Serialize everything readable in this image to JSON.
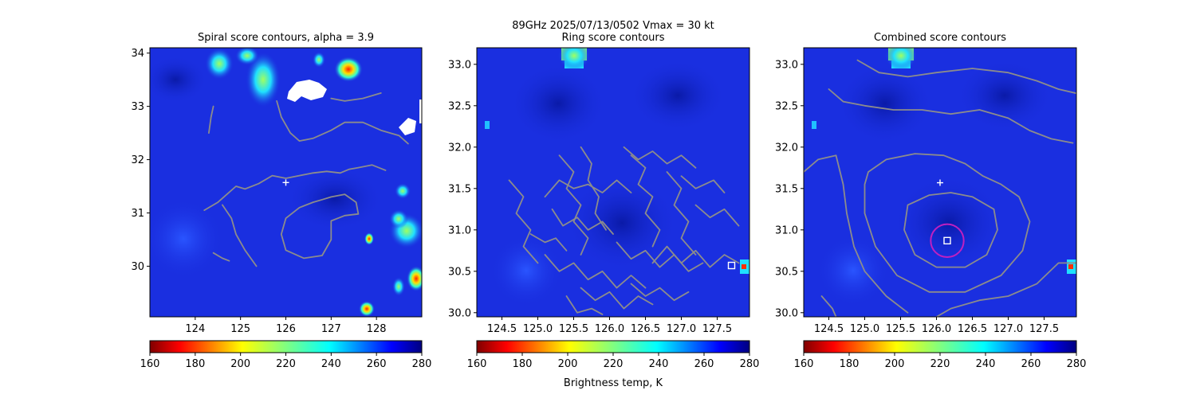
{
  "figure": {
    "suptitle_line1": "89GHz  2025/07/13/0502    Vmax = 30 kt",
    "colorbar_label": "Brightness temp, K"
  },
  "colors": {
    "contour": "#8c8c8c",
    "marker": "#ffffff",
    "circle": "#c020c0",
    "background_field": "#1a2fe0"
  },
  "chart_data": [
    {
      "type": "heatmap",
      "title": "Spiral score contours, alpha =  3.9",
      "xlim": [
        123.0,
        129.0
      ],
      "ylim": [
        29.05,
        34.1
      ],
      "xticks": [
        "124",
        "125",
        "126",
        "127",
        "128"
      ],
      "xtick_values": [
        124,
        125,
        126,
        127,
        128
      ],
      "yticks": [
        "30",
        "31",
        "32",
        "33",
        "34"
      ],
      "ytick_values": [
        30,
        31,
        32,
        33,
        34
      ],
      "colorbar": {
        "min": 160,
        "max": 280,
        "ticks": [
          "160",
          "180",
          "200",
          "220",
          "240",
          "260",
          "280"
        ],
        "cmap": "jet_r"
      },
      "markers": [
        {
          "kind": "plus",
          "lon": 126.0,
          "lat": 31.57
        }
      ],
      "contours": [
        [
          [
            124.2,
            31.05
          ],
          [
            124.5,
            31.2
          ],
          [
            124.7,
            31.35
          ],
          [
            124.9,
            31.5
          ],
          [
            125.1,
            31.45
          ],
          [
            125.4,
            31.55
          ],
          [
            125.7,
            31.7
          ],
          [
            126.0,
            31.65
          ],
          [
            126.3,
            31.7
          ],
          [
            126.6,
            31.75
          ],
          [
            126.9,
            31.78
          ],
          [
            127.2,
            31.75
          ],
          [
            127.4,
            31.82
          ],
          [
            127.6,
            31.85
          ],
          [
            127.9,
            31.9
          ],
          [
            128.2,
            31.8
          ]
        ],
        [
          [
            124.6,
            31.15
          ],
          [
            124.8,
            30.9
          ],
          [
            124.9,
            30.6
          ],
          [
            125.1,
            30.3
          ],
          [
            125.35,
            30.0
          ]
        ],
        [
          [
            126.6,
            31.2
          ],
          [
            126.3,
            31.1
          ],
          [
            126.0,
            30.9
          ],
          [
            125.9,
            30.6
          ],
          [
            126.0,
            30.3
          ],
          [
            126.4,
            30.15
          ],
          [
            126.8,
            30.2
          ],
          [
            127.0,
            30.5
          ],
          [
            127.0,
            30.85
          ],
          [
            127.3,
            30.95
          ],
          [
            127.6,
            30.98
          ],
          [
            127.55,
            31.2
          ],
          [
            127.3,
            31.35
          ],
          [
            127.0,
            31.3
          ],
          [
            126.8,
            31.25
          ],
          [
            126.6,
            31.2
          ]
        ],
        [
          [
            124.4,
            30.25
          ],
          [
            124.6,
            30.15
          ],
          [
            124.75,
            30.1
          ]
        ],
        [
          [
            124.3,
            32.5
          ],
          [
            124.35,
            32.8
          ],
          [
            124.4,
            33.0
          ]
        ],
        [
          [
            125.8,
            33.1
          ],
          [
            125.9,
            32.8
          ],
          [
            126.1,
            32.5
          ],
          [
            126.3,
            32.35
          ],
          [
            126.6,
            32.4
          ],
          [
            127.0,
            32.55
          ],
          [
            127.3,
            32.7
          ],
          [
            127.7,
            32.7
          ],
          [
            128.1,
            32.55
          ],
          [
            128.5,
            32.45
          ],
          [
            128.7,
            32.3
          ]
        ],
        [
          [
            127.0,
            33.15
          ],
          [
            127.3,
            33.1
          ],
          [
            127.7,
            33.15
          ],
          [
            128.1,
            33.25
          ]
        ]
      ]
    },
    {
      "type": "heatmap",
      "title": "Ring score contours",
      "xlim": [
        124.15,
        127.95
      ],
      "ylim": [
        29.95,
        33.2
      ],
      "xticks": [
        "124.5",
        "125.0",
        "125.5",
        "126.0",
        "126.5",
        "127.0",
        "127.5"
      ],
      "xtick_values": [
        124.5,
        125.0,
        125.5,
        126.0,
        126.5,
        127.0,
        127.5
      ],
      "yticks": [
        "30.0",
        "30.5",
        "31.0",
        "31.5",
        "32.0",
        "32.5",
        "33.0"
      ],
      "ytick_values": [
        30.0,
        30.5,
        31.0,
        31.5,
        32.0,
        32.5,
        33.0
      ],
      "colorbar": {
        "min": 160,
        "max": 280,
        "ticks": [
          "160",
          "180",
          "200",
          "220",
          "240",
          "260",
          "280"
        ],
        "cmap": "jet_r"
      },
      "markers": [
        {
          "kind": "square",
          "lon": 127.7,
          "lat": 30.57
        }
      ],
      "contours": [
        [
          [
            124.6,
            31.6
          ],
          [
            124.8,
            31.4
          ],
          [
            124.7,
            31.2
          ],
          [
            124.9,
            31.0
          ],
          [
            124.8,
            30.8
          ],
          [
            125.0,
            30.6
          ]
        ],
        [
          [
            125.3,
            31.9
          ],
          [
            125.5,
            31.7
          ],
          [
            125.4,
            31.5
          ],
          [
            125.6,
            31.3
          ],
          [
            125.5,
            31.1
          ],
          [
            125.7,
            30.9
          ],
          [
            125.6,
            30.7
          ]
        ],
        [
          [
            125.6,
            32.0
          ],
          [
            125.75,
            31.8
          ],
          [
            125.7,
            31.6
          ],
          [
            125.85,
            31.4
          ],
          [
            125.8,
            31.2
          ],
          [
            125.95,
            31.0
          ]
        ],
        [
          [
            125.1,
            31.4
          ],
          [
            125.3,
            31.6
          ],
          [
            125.5,
            31.5
          ],
          [
            125.7,
            31.55
          ],
          [
            125.9,
            31.45
          ],
          [
            126.1,
            31.6
          ],
          [
            126.3,
            31.45
          ]
        ],
        [
          [
            126.3,
            31.9
          ],
          [
            126.5,
            31.75
          ],
          [
            126.4,
            31.55
          ],
          [
            126.6,
            31.4
          ],
          [
            126.5,
            31.2
          ],
          [
            126.7,
            31.0
          ],
          [
            126.6,
            30.8
          ]
        ],
        [
          [
            126.8,
            31.7
          ],
          [
            127.0,
            31.5
          ],
          [
            126.9,
            31.3
          ],
          [
            127.1,
            31.1
          ],
          [
            127.0,
            30.9
          ],
          [
            127.2,
            30.7
          ]
        ],
        [
          [
            125.1,
            30.7
          ],
          [
            125.3,
            30.5
          ],
          [
            125.5,
            30.6
          ],
          [
            125.7,
            30.4
          ],
          [
            125.9,
            30.5
          ],
          [
            126.1,
            30.3
          ],
          [
            126.3,
            30.45
          ],
          [
            126.5,
            30.3
          ]
        ],
        [
          [
            125.6,
            30.3
          ],
          [
            125.8,
            30.15
          ],
          [
            126.0,
            30.25
          ],
          [
            126.2,
            30.05
          ],
          [
            126.4,
            30.2
          ],
          [
            126.6,
            30.1
          ]
        ],
        [
          [
            126.6,
            30.6
          ],
          [
            126.8,
            30.8
          ],
          [
            127.0,
            30.6
          ],
          [
            127.2,
            30.75
          ],
          [
            127.4,
            30.55
          ],
          [
            127.6,
            30.7
          ],
          [
            127.8,
            30.6
          ]
        ],
        [
          [
            127.2,
            31.3
          ],
          [
            127.4,
            31.15
          ],
          [
            127.6,
            31.25
          ],
          [
            127.8,
            31.05
          ]
        ],
        [
          [
            127.0,
            31.65
          ],
          [
            127.2,
            31.5
          ],
          [
            127.45,
            31.6
          ],
          [
            127.6,
            31.45
          ]
        ],
        [
          [
            125.2,
            31.25
          ],
          [
            125.35,
            31.05
          ],
          [
            125.55,
            31.15
          ],
          [
            125.7,
            31.0
          ],
          [
            125.9,
            31.1
          ],
          [
            126.05,
            30.95
          ]
        ],
        [
          [
            126.1,
            30.85
          ],
          [
            126.3,
            30.65
          ],
          [
            126.5,
            30.75
          ],
          [
            126.7,
            30.55
          ],
          [
            126.9,
            30.7
          ],
          [
            127.1,
            30.5
          ],
          [
            127.3,
            30.6
          ]
        ],
        [
          [
            124.9,
            30.95
          ],
          [
            125.1,
            30.85
          ],
          [
            125.25,
            30.9
          ],
          [
            125.4,
            30.75
          ]
        ],
        [
          [
            126.2,
            32.0
          ],
          [
            126.4,
            31.85
          ],
          [
            126.6,
            31.95
          ],
          [
            126.8,
            31.8
          ],
          [
            127.0,
            31.9
          ],
          [
            127.2,
            31.75
          ]
        ],
        [
          [
            125.4,
            30.2
          ],
          [
            125.55,
            30.0
          ],
          [
            125.75,
            30.05
          ],
          [
            125.9,
            29.98
          ]
        ],
        [
          [
            126.3,
            30.35
          ],
          [
            126.5,
            30.2
          ],
          [
            126.7,
            30.3
          ],
          [
            126.9,
            30.15
          ],
          [
            127.1,
            30.25
          ]
        ]
      ]
    },
    {
      "type": "heatmap",
      "title": "Combined score contours",
      "xlim": [
        124.15,
        127.95
      ],
      "ylim": [
        29.95,
        33.2
      ],
      "xticks": [
        "124.5",
        "125.0",
        "125.5",
        "126.0",
        "126.5",
        "127.0",
        "127.5"
      ],
      "xtick_values": [
        124.5,
        125.0,
        125.5,
        126.0,
        126.5,
        127.0,
        127.5
      ],
      "yticks": [
        "30.0",
        "30.5",
        "31.0",
        "31.5",
        "32.0",
        "32.5",
        "33.0"
      ],
      "ytick_values": [
        30.0,
        30.5,
        31.0,
        31.5,
        32.0,
        32.5,
        33.0
      ],
      "colorbar": {
        "min": 160,
        "max": 280,
        "ticks": [
          "160",
          "180",
          "200",
          "220",
          "240",
          "260",
          "280"
        ],
        "cmap": "jet_r"
      },
      "markers": [
        {
          "kind": "plus",
          "lon": 126.05,
          "lat": 31.57
        },
        {
          "kind": "square",
          "lon": 126.15,
          "lat": 30.87
        },
        {
          "kind": "circle",
          "lon": 126.15,
          "lat": 30.87,
          "radius_deg": 0.23
        }
      ],
      "contours": [
        [
          [
            125.6,
            31.3
          ],
          [
            125.55,
            31.0
          ],
          [
            125.7,
            30.7
          ],
          [
            126.0,
            30.55
          ],
          [
            126.4,
            30.55
          ],
          [
            126.7,
            30.7
          ],
          [
            126.85,
            31.0
          ],
          [
            126.8,
            31.25
          ],
          [
            126.5,
            31.4
          ],
          [
            126.2,
            31.45
          ],
          [
            125.9,
            31.42
          ],
          [
            125.6,
            31.3
          ]
        ],
        [
          [
            125.0,
            31.55
          ],
          [
            125.0,
            31.2
          ],
          [
            125.15,
            30.8
          ],
          [
            125.45,
            30.45
          ],
          [
            125.9,
            30.25
          ],
          [
            126.4,
            30.25
          ],
          [
            126.9,
            30.45
          ],
          [
            127.2,
            30.75
          ],
          [
            127.3,
            31.1
          ],
          [
            127.15,
            31.4
          ],
          [
            126.9,
            31.55
          ],
          [
            126.65,
            31.65
          ],
          [
            126.4,
            31.8
          ],
          [
            126.1,
            31.9
          ],
          [
            125.7,
            31.92
          ],
          [
            125.3,
            31.85
          ],
          [
            125.05,
            31.7
          ],
          [
            125.0,
            31.55
          ]
        ],
        [
          [
            124.15,
            31.7
          ],
          [
            124.35,
            31.85
          ],
          [
            124.6,
            31.9
          ],
          [
            124.7,
            31.55
          ],
          [
            124.75,
            31.2
          ],
          [
            124.85,
            30.8
          ],
          [
            125.0,
            30.5
          ],
          [
            125.3,
            30.2
          ],
          [
            125.6,
            30.0
          ]
        ],
        [
          [
            126.0,
            29.95
          ],
          [
            126.2,
            30.05
          ],
          [
            126.6,
            30.15
          ],
          [
            127.0,
            30.2
          ],
          [
            127.4,
            30.35
          ],
          [
            127.7,
            30.6
          ],
          [
            127.95,
            30.6
          ]
        ],
        [
          [
            124.4,
            30.2
          ],
          [
            124.55,
            30.05
          ],
          [
            124.6,
            29.95
          ]
        ],
        [
          [
            124.5,
            32.7
          ],
          [
            124.7,
            32.55
          ],
          [
            125.0,
            32.5
          ],
          [
            125.4,
            32.45
          ],
          [
            125.8,
            32.45
          ],
          [
            126.2,
            32.4
          ],
          [
            126.6,
            32.45
          ],
          [
            127.0,
            32.35
          ],
          [
            127.3,
            32.2
          ],
          [
            127.6,
            32.1
          ],
          [
            127.9,
            32.05
          ]
        ],
        [
          [
            124.9,
            33.05
          ],
          [
            125.2,
            32.9
          ],
          [
            125.6,
            32.85
          ],
          [
            126.0,
            32.9
          ],
          [
            126.5,
            32.95
          ],
          [
            127.0,
            32.9
          ],
          [
            127.4,
            32.8
          ],
          [
            127.7,
            32.7
          ],
          [
            127.95,
            32.65
          ]
        ]
      ]
    }
  ]
}
